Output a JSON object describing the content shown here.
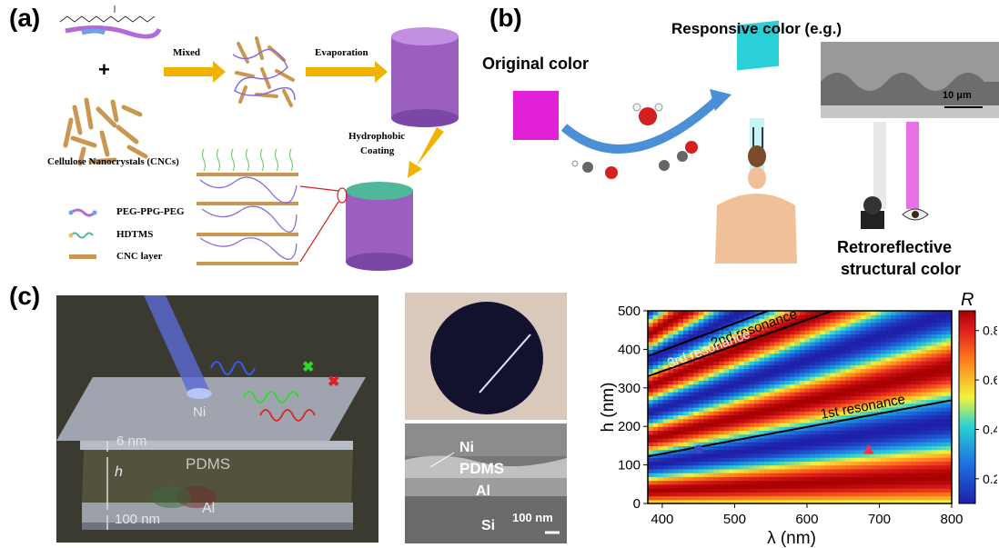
{
  "panels": {
    "a": {
      "label": "(a)",
      "plus": "+",
      "cnc_caption": "Cellulose Nanocrystals (CNCs)",
      "arrow_mixed": "Mixed",
      "arrow_evaporation": "Evaporation",
      "arrow_hydrophobic": "Hydrophobic",
      "arrow_coating": "Coating",
      "legend": [
        {
          "text": "PEG-PPG-PEG",
          "icon": "peg-ppg-peg-icon"
        },
        {
          "text": "HDTMS",
          "icon": "hdtms-icon"
        },
        {
          "text": "CNC layer",
          "icon": "cnc-layer-icon"
        }
      ]
    },
    "b": {
      "label": "(b)",
      "original_color": "Original color",
      "responsive_color": "Responsive color (e.g.)",
      "scale_bar": "10 μm",
      "retro_line1": "Retroreflective",
      "retro_line2": "structural color"
    },
    "c": {
      "label": "(c)",
      "schematic": {
        "ni": "Ni",
        "pdms": "PDMS",
        "al": "Al",
        "h": "h",
        "thick_ni": "6 nm",
        "thick_al": "100 nm"
      },
      "sem": {
        "ni": "Ni",
        "pdms": "PDMS",
        "al": "Al",
        "si": "Si",
        "scale": "100 nm"
      }
    }
  },
  "chart_data": {
    "type": "heatmap",
    "xlabel": "λ (nm)",
    "ylabel": "h (nm)",
    "colorbar_label": "R",
    "xlim": [
      380,
      800
    ],
    "ylim": [
      0,
      500
    ],
    "xticks": [
      "400",
      "500",
      "600",
      "700",
      "800"
    ],
    "yticks": [
      "0",
      "100",
      "200",
      "300",
      "400",
      "500"
    ],
    "colorbar_ticks": [
      "0.2",
      "0.4",
      "0.6",
      "0.8"
    ],
    "colorbar_range": [
      0.1,
      0.88
    ],
    "resonances": [
      {
        "label": "1st resonance",
        "x": [
          380,
          800
        ],
        "y": [
          122,
          268
        ]
      },
      {
        "label": "2nd resonance",
        "x": [
          380,
          800
        ],
        "y": [
          330,
          610
        ]
      },
      {
        "label": "3rd resonance",
        "x": [
          380,
          800
        ],
        "y": [
          382,
          680
        ]
      }
    ],
    "markers": [
      {
        "shape": "circle",
        "x": 450,
        "y": 140,
        "color": "#3a46c8"
      },
      {
        "shape": "triangle",
        "x": 685,
        "y": 140,
        "color": "#e8364a"
      }
    ],
    "colors": {
      "low": "#1f1fa8",
      "high": "#a80000"
    }
  }
}
